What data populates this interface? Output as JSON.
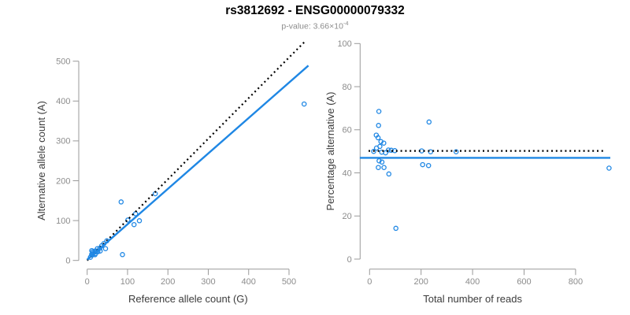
{
  "header": {
    "title": "rs3812692 - ENSG00000079332",
    "p_value_text": "p-value: 3.66×10",
    "p_value_exponent": "-4"
  },
  "style": {
    "point_color": "#1f87e4",
    "solid_line_color": "#1f87e4",
    "dotted_line_color": "#000000",
    "axis_color": "#999999",
    "tick_label_color": "#8c8c8c",
    "axis_title_color": "#3c3c3c",
    "title_color": "#000000",
    "subtitle_color": "#8c8c8c",
    "background_color": "#ffffff"
  },
  "chart_data": [
    {
      "id": "allele-counts-scatter",
      "type": "scatter",
      "title": "",
      "xlabel": "Reference allele count (G)",
      "ylabel": "Alternative allele count (A)",
      "xlim": [
        0,
        555
      ],
      "ylim": [
        0,
        555
      ],
      "x_ticks": [
        0,
        100,
        200,
        300,
        400,
        500
      ],
      "y_ticks": [
        0,
        100,
        200,
        300,
        400,
        500
      ],
      "grid": false,
      "points": [
        [
          11.3,
          24.7
        ],
        [
          13.3,
          21.7
        ],
        [
          11.1,
          15.0
        ],
        [
          14.4,
          18.6
        ],
        [
          20.0,
          24.0
        ],
        [
          25.4,
          29.6
        ],
        [
          19.1,
          20.9
        ],
        [
          13.1,
          13.9
        ],
        [
          8.0,
          8.0
        ],
        [
          36.1,
          36.9
        ],
        [
          41.6,
          42.4
        ],
        [
          48.7,
          49.3
        ],
        [
          23.7,
          23.3
        ],
        [
          31.4,
          30.6
        ],
        [
          84.1,
          146.9
        ],
        [
          100.6,
          101.4
        ],
        [
          119.9,
          117.1
        ],
        [
          168.7,
          167.3
        ],
        [
          20.1,
          16.9
        ],
        [
          26.4,
          21.6
        ],
        [
          19.6,
          14.4
        ],
        [
          32.2,
          23.8
        ],
        [
          116.0,
          90.0
        ],
        [
          129.4,
          99.6
        ],
        [
          45.4,
          29.6
        ],
        [
          537.5,
          392.5
        ],
        [
          87.4,
          14.6
        ]
      ],
      "lines": [
        {
          "name": "identity-dotted-line",
          "style": "dotted",
          "color": "#000000",
          "from": [
            0,
            0
          ],
          "to": [
            540,
            550
          ]
        },
        {
          "name": "regression-line",
          "style": "solid",
          "color": "#1f87e4",
          "from": [
            0,
            2
          ],
          "to": [
            548,
            489
          ]
        }
      ]
    },
    {
      "id": "percentage-vs-reads-scatter",
      "type": "scatter",
      "title": "",
      "xlabel": "Total number of reads",
      "ylabel": "Percentage alternative (A)",
      "xlim": [
        -38,
        960
      ],
      "ylim": [
        0,
        100
      ],
      "x_ticks": [
        0,
        200,
        400,
        600,
        800
      ],
      "y_ticks": [
        0,
        20,
        40,
        60,
        80,
        100
      ],
      "grid": false,
      "points": [
        [
          36,
          68.5
        ],
        [
          35,
          62.0
        ],
        [
          26,
          57.5
        ],
        [
          33,
          56.3
        ],
        [
          44,
          54.5
        ],
        [
          55,
          53.8
        ],
        [
          40,
          52.3
        ],
        [
          27,
          51.5
        ],
        [
          16,
          50.0
        ],
        [
          73,
          50.6
        ],
        [
          84,
          50.5
        ],
        [
          98,
          50.3
        ],
        [
          47,
          49.6
        ],
        [
          62,
          49.3
        ],
        [
          231,
          63.6
        ],
        [
          202,
          50.2
        ],
        [
          237,
          49.8
        ],
        [
          336,
          49.8
        ],
        [
          37,
          45.6
        ],
        [
          48,
          45.0
        ],
        [
          34,
          42.5
        ],
        [
          56,
          42.5
        ],
        [
          206,
          43.8
        ],
        [
          229,
          43.4
        ],
        [
          75,
          39.5
        ],
        [
          930,
          42.2
        ],
        [
          102,
          14.3
        ]
      ],
      "lines": [
        {
          "name": "expected-50pct-dotted-line",
          "style": "dotted",
          "color": "#000000",
          "from": [
            -4,
            50.2
          ],
          "to": [
            912,
            50.2
          ]
        },
        {
          "name": "mean-percentage-line",
          "style": "solid",
          "color": "#1f87e4",
          "from": [
            -38,
            47
          ],
          "to": [
            935,
            47
          ]
        }
      ]
    }
  ]
}
